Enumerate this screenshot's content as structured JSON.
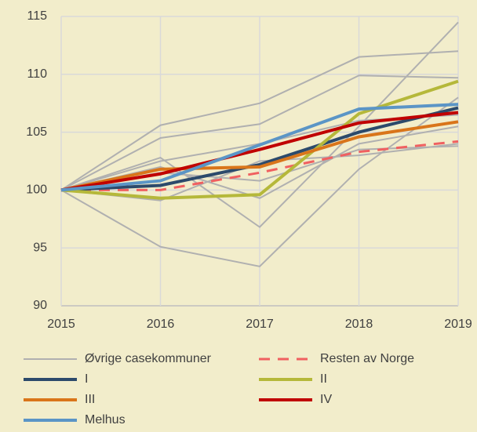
{
  "chart_data": {
    "type": "line",
    "x": [
      2015,
      2016,
      2017,
      2018,
      2019
    ],
    "xlim": [
      2015,
      2019
    ],
    "xticks": [
      2015,
      2016,
      2017,
      2018,
      2019
    ],
    "ylim": [
      90,
      115
    ],
    "yticks": [
      90,
      95,
      100,
      105,
      110,
      115
    ],
    "grid": true,
    "legend": "bottom",
    "background": "#f2edcb",
    "group": {
      "name": "Øvrige casekommuner",
      "color": "#b0b0b0",
      "lines": [
        [
          100,
          105.6,
          107.5,
          111.5,
          112.0
        ],
        [
          100,
          104.5,
          105.7,
          109.9,
          109.7
        ],
        [
          100,
          102.8,
          96.8,
          105.5,
          114.5
        ],
        [
          100,
          95.1,
          93.4,
          101.8,
          108.0
        ],
        [
          100,
          102.0,
          99.3,
          104.0,
          105.5
        ],
        [
          100,
          101.5,
          100.8,
          103.5,
          103.8
        ],
        [
          100,
          99.1,
          102.5,
          103.0,
          104.0
        ],
        [
          100,
          102.5,
          104.0,
          106.0,
          106.5
        ]
      ]
    },
    "series": [
      {
        "name": "Resten av Norge",
        "color": "#f06060",
        "dash": true,
        "values": [
          100,
          100.0,
          101.5,
          103.3,
          104.2
        ]
      },
      {
        "name": "I",
        "color": "#2c4a6b",
        "values": [
          100,
          100.4,
          102.2,
          105.0,
          107.1
        ]
      },
      {
        "name": "II",
        "color": "#b5b83a",
        "values": [
          100,
          99.3,
          99.6,
          106.6,
          109.4
        ]
      },
      {
        "name": "III",
        "color": "#d9751a",
        "values": [
          100,
          101.8,
          102.0,
          104.6,
          105.9
        ]
      },
      {
        "name": "IV",
        "color": "#c00000",
        "values": [
          100,
          101.4,
          103.5,
          105.8,
          106.7
        ]
      },
      {
        "name": "Melhus",
        "color": "#5b95c6",
        "values": [
          100,
          100.8,
          103.9,
          107.0,
          107.4
        ]
      }
    ]
  }
}
